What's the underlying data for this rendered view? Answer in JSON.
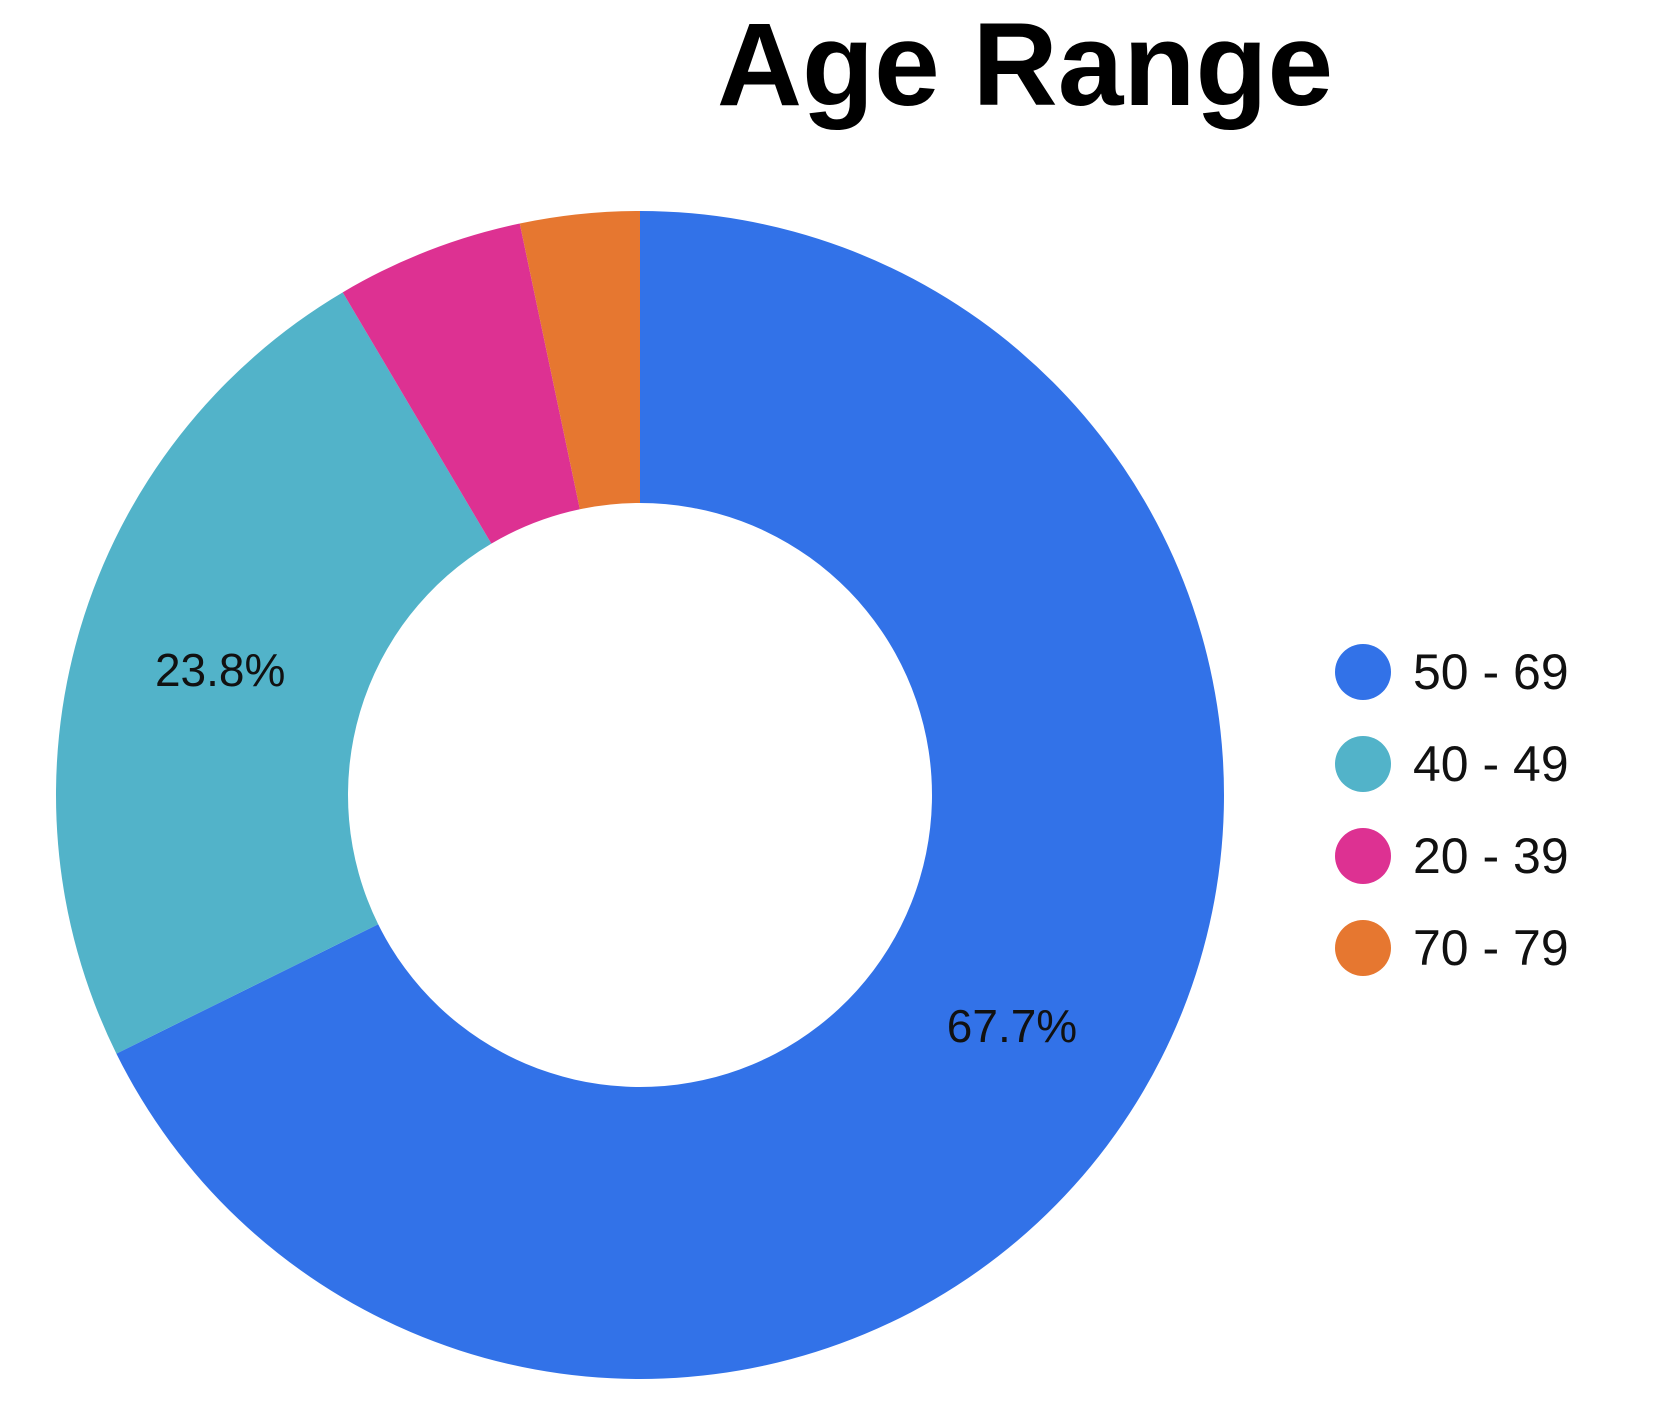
{
  "chart_data": {
    "type": "pie",
    "style": "donut",
    "title": "Age Range",
    "legend_position": "right",
    "slices": [
      {
        "label": "50 - 69",
        "value": 67.7,
        "color": "#3272E8",
        "value_label": "67.7%"
      },
      {
        "label": "40 - 49",
        "value": 23.8,
        "color": "#52B3C9",
        "value_label": "23.8%"
      },
      {
        "label": "20 - 39",
        "value": 5.2,
        "color": "#DD3192",
        "value_label": ""
      },
      {
        "label": "70 - 79",
        "value": 3.3,
        "color": "#E67730",
        "value_label": ""
      }
    ]
  }
}
